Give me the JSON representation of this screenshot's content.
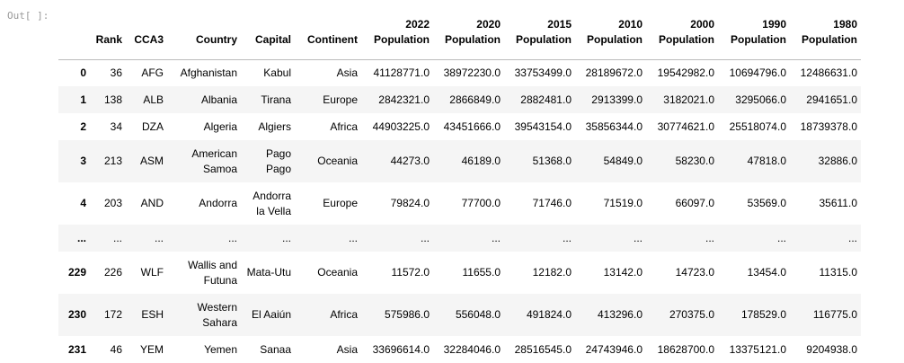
{
  "prompt": "Out[ ]:",
  "table": {
    "columns": [
      "",
      "Rank",
      "CCA3",
      "Country",
      "Capital",
      "Continent",
      "2022 Population",
      "2020 Population",
      "2015 Population",
      "2010 Population",
      "2000 Population",
      "1990 Population",
      "1980 Population"
    ],
    "rows": [
      [
        "0",
        "36",
        "AFG",
        "Afghanistan",
        "Kabul",
        "Asia",
        "41128771.0",
        "38972230.0",
        "33753499.0",
        "28189672.0",
        "19542982.0",
        "10694796.0",
        "12486631.0"
      ],
      [
        "1",
        "138",
        "ALB",
        "Albania",
        "Tirana",
        "Europe",
        "2842321.0",
        "2866849.0",
        "2882481.0",
        "2913399.0",
        "3182021.0",
        "3295066.0",
        "2941651.0"
      ],
      [
        "2",
        "34",
        "DZA",
        "Algeria",
        "Algiers",
        "Africa",
        "44903225.0",
        "43451666.0",
        "39543154.0",
        "35856344.0",
        "30774621.0",
        "25518074.0",
        "18739378.0"
      ],
      [
        "3",
        "213",
        "ASM",
        "American Samoa",
        "Pago Pago",
        "Oceania",
        "44273.0",
        "46189.0",
        "51368.0",
        "54849.0",
        "58230.0",
        "47818.0",
        "32886.0"
      ],
      [
        "4",
        "203",
        "AND",
        "Andorra",
        "Andorra la Vella",
        "Europe",
        "79824.0",
        "77700.0",
        "71746.0",
        "71519.0",
        "66097.0",
        "53569.0",
        "35611.0"
      ],
      [
        "...",
        "...",
        "...",
        "...",
        "...",
        "...",
        "...",
        "...",
        "...",
        "...",
        "...",
        "...",
        "..."
      ],
      [
        "229",
        "226",
        "WLF",
        "Wallis and Futuna",
        "Mata-Utu",
        "Oceania",
        "11572.0",
        "11655.0",
        "12182.0",
        "13142.0",
        "14723.0",
        "13454.0",
        "11315.0"
      ],
      [
        "230",
        "172",
        "ESH",
        "Western Sahara",
        "El Aaiún",
        "Africa",
        "575986.0",
        "556048.0",
        "491824.0",
        "413296.0",
        "270375.0",
        "178529.0",
        "116775.0"
      ],
      [
        "231",
        "46",
        "YEM",
        "Yemen",
        "Sanaa",
        "Asia",
        "33696614.0",
        "32284046.0",
        "28516545.0",
        "24743946.0",
        "18628700.0",
        "13375121.0",
        "9204938.0"
      ]
    ]
  }
}
